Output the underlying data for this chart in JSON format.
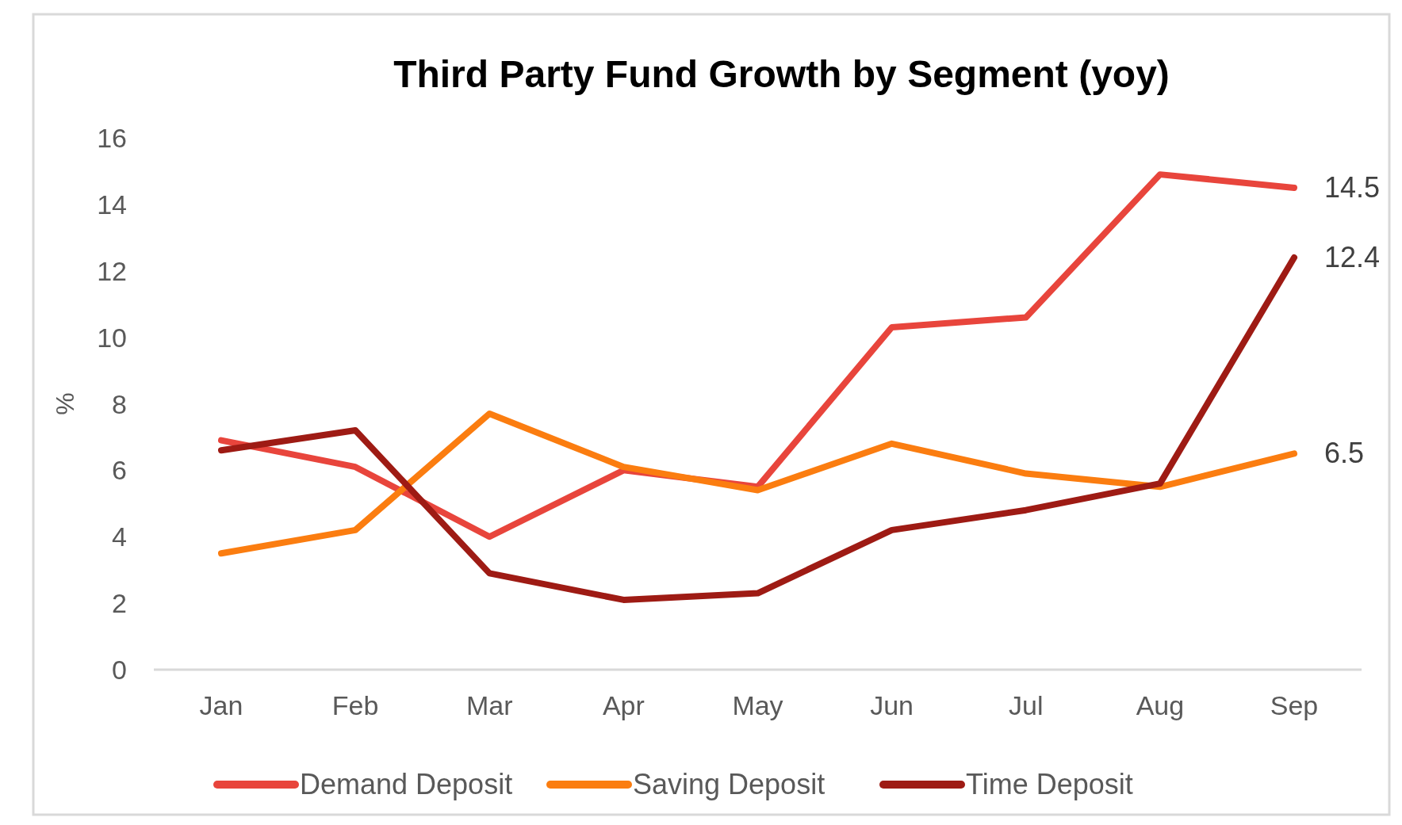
{
  "chart_data": {
    "type": "line",
    "title": "Third Party Fund Growth by Segment (yoy)",
    "ylabel": "%",
    "categories": [
      "Jan",
      "Feb",
      "Mar",
      "Apr",
      "May",
      "Jun",
      "Jul",
      "Aug",
      "Sep"
    ],
    "series": [
      {
        "name": "Demand Deposit",
        "color": "#e8453c",
        "values": [
          6.9,
          6.1,
          4.0,
          6.0,
          5.5,
          10.3,
          10.6,
          14.9,
          14.5
        ],
        "value_labels": [
          null,
          null,
          null,
          null,
          null,
          null,
          null,
          null,
          "14.5"
        ]
      },
      {
        "name": "Saving Deposit",
        "color": "#fb7d10",
        "values": [
          3.5,
          4.2,
          7.7,
          6.1,
          5.4,
          6.8,
          5.9,
          5.5,
          6.5
        ],
        "value_labels": [
          null,
          null,
          null,
          null,
          null,
          null,
          null,
          null,
          "6.5"
        ]
      },
      {
        "name": "Time Deposit",
        "color": "#9e1b14",
        "values": [
          6.6,
          7.2,
          2.9,
          2.1,
          2.3,
          4.2,
          4.8,
          5.6,
          12.4
        ],
        "value_labels": [
          null,
          null,
          null,
          null,
          null,
          null,
          null,
          null,
          "12.4"
        ]
      }
    ],
    "ylim": [
      0,
      16
    ],
    "yticks": [
      0,
      2,
      4,
      6,
      8,
      10,
      12,
      14,
      16
    ],
    "grid": false,
    "legend": "bottom",
    "marker": "none",
    "line_style": "solid"
  }
}
